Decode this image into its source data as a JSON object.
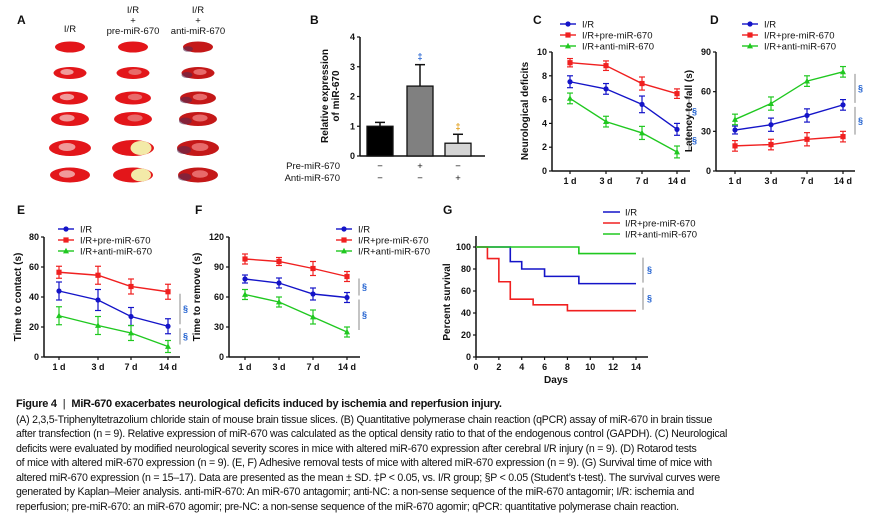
{
  "panel_labels": [
    "A",
    "B",
    "C",
    "D",
    "E",
    "F",
    "G"
  ],
  "panel_a": {
    "columns": [
      {
        "lines": [
          "I/R"
        ]
      },
      {
        "lines": [
          "I/R",
          "+",
          "pre-miR-670"
        ]
      },
      {
        "lines": [
          "I/R",
          "+",
          "anti-miR-670"
        ]
      }
    ]
  },
  "chart_data": [
    {
      "panel": "B",
      "type": "bar",
      "categories": [
        "I/R",
        "I/R+pre-miR-670",
        "I/R+anti-miR-670"
      ],
      "values": [
        1.0,
        2.35,
        0.43
      ],
      "errors": [
        0.13,
        0.72,
        0.3
      ],
      "colors": [
        "#000000",
        "#808080",
        "#d4d4d4"
      ],
      "ylabel_lines": [
        "Relative expression",
        "of miR-670"
      ],
      "ylim": [
        0,
        4
      ],
      "yticks": [
        "0",
        "1",
        "2",
        "3",
        "4"
      ],
      "annotations": [
        null,
        "‡",
        "‡"
      ],
      "annotation_colors": [
        "#1f5fd0",
        "#e09a10"
      ],
      "treatment_rows": [
        {
          "label": "Pre-miR-670",
          "values": [
            "−",
            "+",
            "−"
          ]
        },
        {
          "label": "Anti-miR-670",
          "values": [
            "−",
            "−",
            "+"
          ]
        }
      ]
    },
    {
      "panel": "C",
      "type": "line",
      "x": [
        "1 d",
        "3 d",
        "7 d",
        "14 d"
      ],
      "ylabel": "Neurological deficits",
      "ylim": [
        0,
        10
      ],
      "yticks": [
        "0",
        "2",
        "4",
        "6",
        "8",
        "10"
      ],
      "series": [
        {
          "name": "I/R",
          "values": [
            7.5,
            6.9,
            5.6,
            3.5
          ],
          "errors": [
            0.5,
            0.45,
            0.7,
            0.5
          ],
          "color": "#1414c8",
          "marker": "circle"
        },
        {
          "name": "I/R+pre-miR-670",
          "values": [
            9.1,
            8.85,
            7.35,
            6.5
          ],
          "errors": [
            0.35,
            0.4,
            0.55,
            0.4
          ],
          "color": "#f02020",
          "marker": "square"
        },
        {
          "name": "I/R+anti-miR-670",
          "values": [
            6.1,
            4.15,
            3.2,
            1.6
          ],
          "errors": [
            0.45,
            0.45,
            0.55,
            0.5
          ],
          "color": "#20c820",
          "marker": "triangle"
        }
      ],
      "significance": [
        {
          "between": [
            1,
            0
          ],
          "label": "§"
        },
        {
          "between": [
            0,
            2
          ],
          "label": "§"
        }
      ]
    },
    {
      "panel": "D",
      "type": "line",
      "x": [
        "1 d",
        "3 d",
        "7 d",
        "14 d"
      ],
      "ylabel": "Latency to fall (s)",
      "ylim": [
        0,
        90
      ],
      "yticks": [
        "0",
        "30",
        "60",
        "90"
      ],
      "series": [
        {
          "name": "I/R",
          "values": [
            31,
            35,
            42,
            50
          ],
          "errors": [
            3,
            5,
            5,
            4
          ],
          "color": "#1414c8",
          "marker": "circle"
        },
        {
          "name": "I/R+pre-miR-670",
          "values": [
            19,
            20,
            24,
            26
          ],
          "errors": [
            4,
            4,
            5,
            4
          ],
          "color": "#f02020",
          "marker": "square"
        },
        {
          "name": "I/R+anti-miR-670",
          "values": [
            39,
            51,
            68,
            75
          ],
          "errors": [
            4,
            5,
            4,
            4
          ],
          "color": "#20c820",
          "marker": "triangle"
        }
      ],
      "significance": [
        {
          "between": [
            2,
            0
          ],
          "label": "§"
        },
        {
          "between": [
            0,
            1
          ],
          "label": "§"
        }
      ]
    },
    {
      "panel": "E",
      "type": "line",
      "x": [
        "1 d",
        "3 d",
        "7 d",
        "14 d"
      ],
      "ylabel": "Time to contact (s)",
      "ylim": [
        0,
        80
      ],
      "yticks": [
        "0",
        "20",
        "40",
        "60",
        "80"
      ],
      "series": [
        {
          "name": "I/R",
          "values": [
            44,
            38,
            27,
            20.5
          ],
          "errors": [
            6,
            7,
            6,
            5
          ],
          "color": "#1414c8",
          "marker": "circle"
        },
        {
          "name": "I/R+pre-miR-670",
          "values": [
            56.5,
            54.5,
            47,
            43.5
          ],
          "errors": [
            4,
            6,
            5,
            5
          ],
          "color": "#f02020",
          "marker": "square"
        },
        {
          "name": "I/R+anti-miR-670",
          "values": [
            27.5,
            21,
            16,
            7
          ],
          "errors": [
            6,
            6,
            5,
            4
          ],
          "color": "#20c820",
          "marker": "triangle"
        }
      ],
      "significance": [
        {
          "between": [
            1,
            0
          ],
          "label": "§"
        },
        {
          "between": [
            0,
            2
          ],
          "label": "§"
        }
      ]
    },
    {
      "panel": "F",
      "type": "line",
      "x": [
        "1 d",
        "3 d",
        "7 d",
        "14 d"
      ],
      "ylabel": "Time to remove (s)",
      "ylim": [
        0,
        120
      ],
      "yticks": [
        "0",
        "30",
        "60",
        "90",
        "120"
      ],
      "series": [
        {
          "name": "I/R",
          "values": [
            78,
            74,
            63,
            59.5
          ],
          "errors": [
            4,
            5,
            6,
            5
          ],
          "color": "#1414c8",
          "marker": "circle"
        },
        {
          "name": "I/R+pre-miR-670",
          "values": [
            98,
            95.5,
            88.5,
            80.5
          ],
          "errors": [
            5,
            4,
            7,
            5
          ],
          "color": "#f02020",
          "marker": "square"
        },
        {
          "name": "I/R+anti-miR-670",
          "values": [
            62.5,
            55,
            40,
            25
          ],
          "errors": [
            5,
            5,
            7,
            5
          ],
          "color": "#20c820",
          "marker": "triangle"
        }
      ],
      "significance": [
        {
          "between": [
            1,
            0
          ],
          "label": "§"
        },
        {
          "between": [
            0,
            2
          ],
          "label": "§"
        }
      ]
    },
    {
      "panel": "G",
      "type": "step",
      "xlabel": "Days",
      "ylabel": "Percent survival",
      "xlim": [
        0,
        14
      ],
      "xticks": [
        "0",
        "2",
        "4",
        "6",
        "8",
        "10",
        "12",
        "14"
      ],
      "ylim": [
        0,
        110
      ],
      "yticks": [
        "0",
        "20",
        "40",
        "60",
        "80",
        "100"
      ],
      "series": [
        {
          "name": "I/R",
          "color": "#1414c8",
          "points": [
            [
              0,
              100
            ],
            [
              3,
              86.7
            ],
            [
              4,
              80
            ],
            [
              6,
              73.3
            ],
            [
              9,
              66.7
            ],
            [
              14,
              66.7
            ]
          ]
        },
        {
          "name": "I/R+pre-miR-670",
          "color": "#f02020",
          "points": [
            [
              0,
              100
            ],
            [
              1,
              89.5
            ],
            [
              2,
              68.4
            ],
            [
              3,
              52.6
            ],
            [
              5,
              47.4
            ],
            [
              8,
              42.1
            ],
            [
              14,
              42.1
            ]
          ]
        },
        {
          "name": "I/R+anti-miR-670",
          "color": "#20c820",
          "points": [
            [
              0,
              100
            ],
            [
              9,
              94
            ],
            [
              14,
              94
            ]
          ]
        }
      ],
      "significance": [
        {
          "between": [
            2,
            0
          ],
          "label": "§"
        },
        {
          "between": [
            0,
            1
          ],
          "label": "§"
        }
      ]
    }
  ],
  "caption": {
    "figure_number": "Figure 4",
    "title": "MiR-670 exacerbates neurological deficits induced by ischemia and reperfusion injury.",
    "lines": [
      "(A) 2,3,5-Triphenyltetrazolium chloride stain of mouse brain tissue slices. (B) Quantitative polymerase chain reaction (qPCR) assay of miR-670 in brain tissue",
      "after transfection (n = 9). Relative expression of miR-670 was calculated as the optical density ratio to that of the endogenous control (GAPDH). (C) Neurological",
      "deficits were evaluated by modified neurological severity scores in mice with altered miR-670 expression after cerebral I/R injury (n = 9). (D) Rotarod tests",
      "of mice with altered miR-670 expression (n = 9). (E, F) Adhesive removal tests of mice with altered miR-670 expression (n = 9). (G) Survival time of mice with",
      "altered miR-670 expression (n = 15–17). Data are presented as the mean ± SD. ‡P < 0.05, vs. I/R group; §P < 0.05 (Student’s t-test). The survival curves were",
      "generated by Kaplan–Meier analysis. anti-miR-670: An miR-670 antagomir; anti-NC: a non-sense sequence of the miR-670 antagomir; I/R: ischemia and",
      "reperfusion; pre-miR-670: an miR-670 agomir; pre-NC: a non-sense sequence of the miR-670 agomir; qPCR: quantitative polymerase chain reaction."
    ]
  }
}
